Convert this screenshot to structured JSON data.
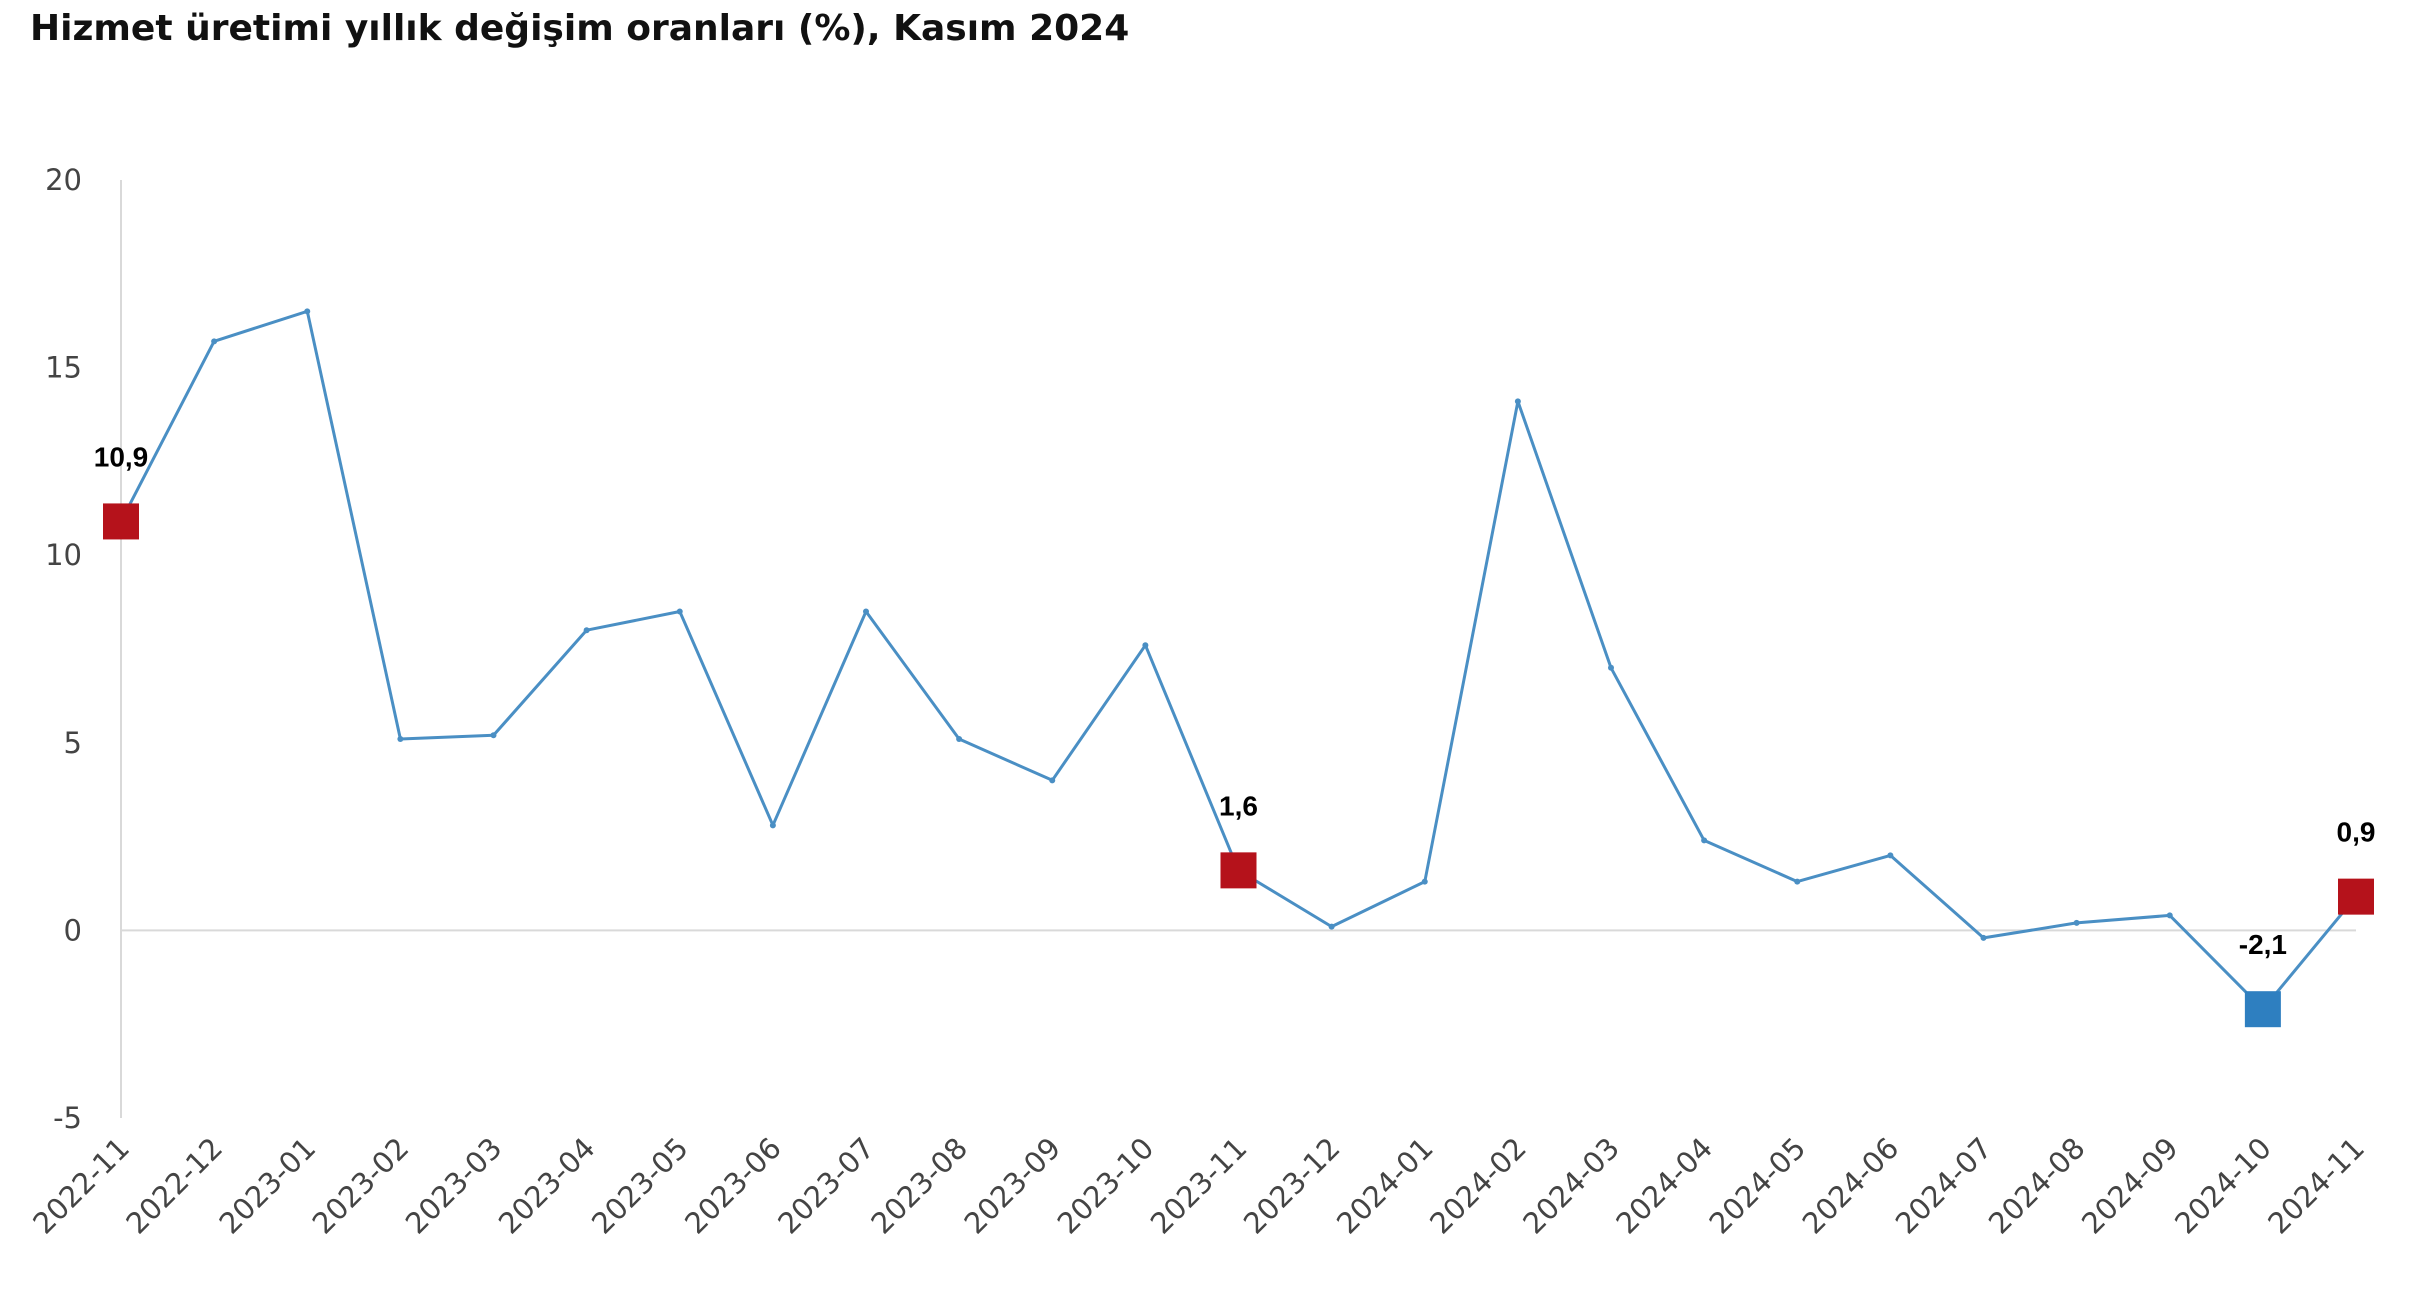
{
  "chart_data": {
    "type": "line",
    "title": "Hizmet üretimi yıllık değişim oranları (%), Kasım 2024",
    "xlabel": "",
    "ylabel": "",
    "ylim": [
      -5,
      20
    ],
    "yticks": [
      "-5",
      "0",
      "5",
      "10",
      "15",
      "20"
    ],
    "grid": false,
    "legend": "none",
    "categories": [
      "2022-11",
      "2022-12",
      "2023-01",
      "2023-02",
      "2023-03",
      "2023-04",
      "2023-05",
      "2023-06",
      "2023-07",
      "2023-08",
      "2023-09",
      "2023-10",
      "2023-11",
      "2023-12",
      "2024-01",
      "2024-02",
      "2024-03",
      "2024-04",
      "2024-05",
      "2024-06",
      "2024-07",
      "2024-08",
      "2024-09",
      "2024-10",
      "2024-11"
    ],
    "series": [
      {
        "values": [
          10.9,
          15.7,
          16.5,
          5.1,
          5.2,
          8.0,
          8.5,
          2.8,
          8.5,
          5.1,
          4.0,
          7.6,
          1.6,
          0.1,
          1.3,
          14.1,
          7.0,
          2.4,
          1.3,
          2.0,
          -0.2,
          0.2,
          0.4,
          -2.1,
          0.9
        ],
        "color": "#4a8fc4"
      }
    ],
    "highlights": [
      {
        "category": "2022-11",
        "value": 10.9,
        "label": "10,9",
        "color": "#b5121b"
      },
      {
        "category": "2023-11",
        "value": 1.6,
        "label": "1,6",
        "color": "#b5121b"
      },
      {
        "category": "2024-10",
        "value": -2.1,
        "label": "-2,1",
        "color": "#2e7fc0"
      },
      {
        "category": "2024-11",
        "value": 0.9,
        "label": "0,9",
        "color": "#b5121b"
      }
    ]
  }
}
